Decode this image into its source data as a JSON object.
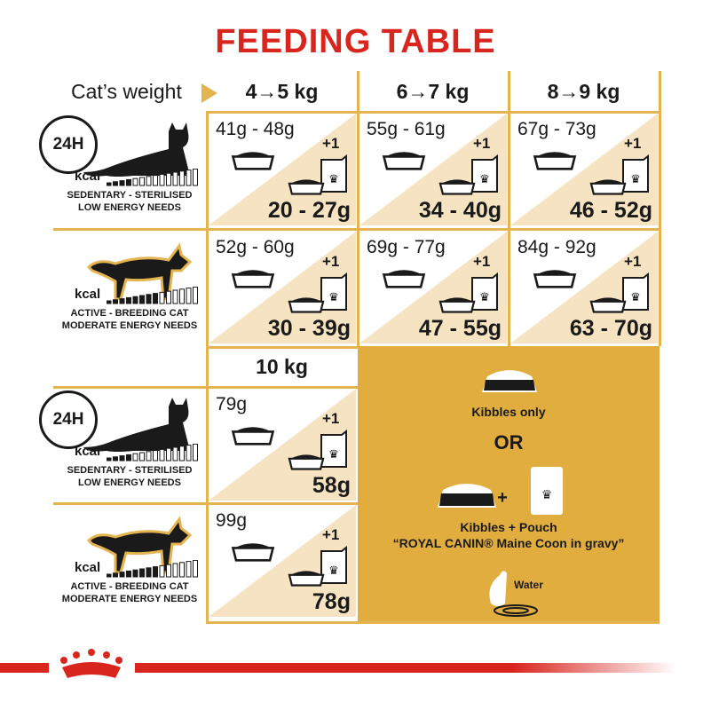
{
  "title": "FEEDING TABLE",
  "header": {
    "weight_label": "Cat’s weight",
    "columns": [
      "4→5 kg",
      "6→7 kg",
      "8→9 kg"
    ],
    "column_10": "10 kg"
  },
  "profiles": {
    "sedentary": {
      "clock": "24H",
      "kcal": "kcal",
      "line1": "SEDENTARY - STERILISED",
      "line2": "LOW ENERGY NEEDS",
      "kcal_level": 0.25
    },
    "active": {
      "kcal": "kcal",
      "line1": "ACTIVE - BREEDING CAT",
      "line2": "MODERATE ENERGY NEEDS",
      "kcal_level": 0.55
    }
  },
  "plus_one": "+1",
  "rows": [
    {
      "profile": "sedentary",
      "cells": [
        {
          "dry": "41g - 48g",
          "wet": "20 - 27g"
        },
        {
          "dry": "55g - 61g",
          "wet": "34 - 40g"
        },
        {
          "dry": "67g - 73g",
          "wet": "46 - 52g"
        }
      ]
    },
    {
      "profile": "active",
      "cells": [
        {
          "dry": "52g - 60g",
          "wet": "30 - 39g"
        },
        {
          "dry": "69g - 77g",
          "wet": "47 - 55g"
        },
        {
          "dry": "84g - 92g",
          "wet": "63 - 70g"
        }
      ]
    },
    {
      "profile": "sedentary",
      "cells": [
        {
          "dry": "79g",
          "wet": "58g"
        }
      ]
    },
    {
      "profile": "active",
      "cells": [
        {
          "dry": "99g",
          "wet": "78g"
        }
      ]
    }
  ],
  "legend": {
    "kibbles_only": "Kibbles only",
    "or": "OR",
    "plus": "+",
    "kibbles_pouch": "Kibbles + Pouch",
    "product": "“ROYAL CANIN® Maine Coon in gravy”",
    "water": "Water"
  },
  "colors": {
    "title": "#d8261f",
    "gold": "#e1ad3f",
    "cream": "#f5e3c2",
    "lines": "#e3b44f"
  }
}
